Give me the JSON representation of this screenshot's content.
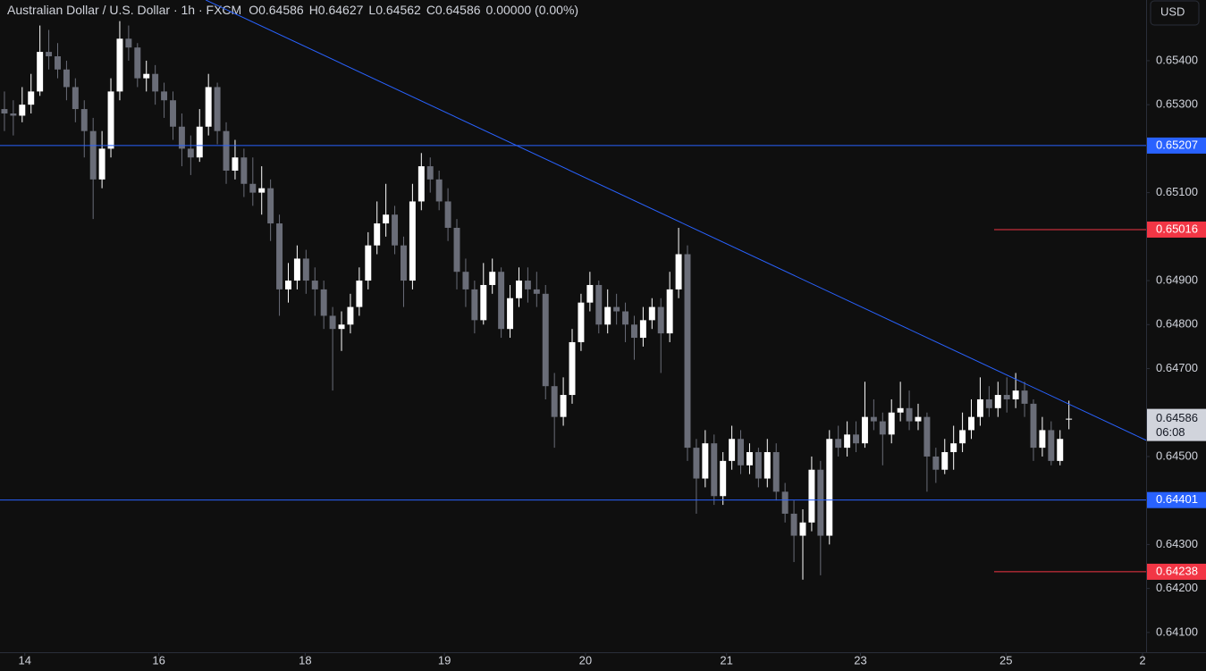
{
  "chart_data": {
    "type": "candlestick",
    "title": "Australian Dollar / U.S. Dollar · 1h · FXCM",
    "legend_values": [
      "O0.64586",
      "H0.64627",
      "L0.64562",
      "C0.64586",
      "0.00000 (0.00%)"
    ],
    "currency": "USD",
    "up_color": "#ffffff",
    "down_color": "#6a6d78",
    "xlim": [
      -0.5,
      128.7
    ],
    "xticks": [
      {
        "value": 2.3,
        "label": "14"
      },
      {
        "value": 17.4,
        "label": "16"
      },
      {
        "value": 33.9,
        "label": "18"
      },
      {
        "value": 49.6,
        "label": "19"
      },
      {
        "value": 65.5,
        "label": "20"
      },
      {
        "value": 81.4,
        "label": "21"
      },
      {
        "value": 96.5,
        "label": "23"
      },
      {
        "value": 112.9,
        "label": "25"
      },
      {
        "value": 128.3,
        "label": "2"
      }
    ],
    "ylim": [
      0.64055,
      0.65538
    ],
    "yticks": [
      {
        "value": 0.654,
        "label": "0.65400"
      },
      {
        "value": 0.653,
        "label": "0.65300"
      },
      {
        "value": 0.651,
        "label": "0.65100"
      },
      {
        "value": 0.649,
        "label": "0.64900"
      },
      {
        "value": 0.648,
        "label": "0.64800"
      },
      {
        "value": 0.647,
        "label": "0.64700"
      },
      {
        "value": 0.645,
        "label": "0.64500"
      },
      {
        "value": 0.643,
        "label": "0.64300"
      },
      {
        "value": 0.642,
        "label": "0.64200"
      },
      {
        "value": 0.641,
        "label": "0.64100"
      }
    ],
    "price_lines": [
      {
        "value": 0.65207,
        "color": "#2962ff",
        "full": true
      },
      {
        "value": 0.65016,
        "color": "#f23645",
        "full": false
      },
      {
        "value": 0.64401,
        "color": "#2962ff",
        "full": true
      },
      {
        "value": 0.64238,
        "color": "#f23645",
        "full": false
      }
    ],
    "current_price": 0.64586,
    "countdown": "06:08",
    "trendline": {
      "color": "#2962ff",
      "x": [
        22.7,
        128.7
      ],
      "y": [
        0.65538,
        0.64537
      ]
    },
    "candles": [
      [
        0.6529,
        0.6533,
        0.6524,
        0.6528
      ],
      [
        0.6528,
        0.6531,
        0.6523,
        0.65275
      ],
      [
        0.65275,
        0.6534,
        0.6526,
        0.653
      ],
      [
        0.653,
        0.6537,
        0.6528,
        0.6533
      ],
      [
        0.6533,
        0.6548,
        0.6532,
        0.6542
      ],
      [
        0.6542,
        0.6547,
        0.6538,
        0.6541
      ],
      [
        0.6541,
        0.6544,
        0.6536,
        0.6538
      ],
      [
        0.6538,
        0.654,
        0.6531,
        0.6534
      ],
      [
        0.6534,
        0.6536,
        0.6526,
        0.6529
      ],
      [
        0.6529,
        0.6531,
        0.6518,
        0.6524
      ],
      [
        0.6524,
        0.6527,
        0.6504,
        0.6513
      ],
      [
        0.6513,
        0.6524,
        0.6511,
        0.652
      ],
      [
        0.652,
        0.6536,
        0.6518,
        0.6533
      ],
      [
        0.6533,
        0.6549,
        0.6531,
        0.6545
      ],
      [
        0.6545,
        0.6548,
        0.654,
        0.6543
      ],
      [
        0.6543,
        0.6544,
        0.6534,
        0.6536
      ],
      [
        0.6536,
        0.654,
        0.6533,
        0.6537
      ],
      [
        0.6537,
        0.6539,
        0.653,
        0.6533
      ],
      [
        0.6533,
        0.6535,
        0.6527,
        0.6531
      ],
      [
        0.6531,
        0.6533,
        0.6522,
        0.6525
      ],
      [
        0.6525,
        0.6528,
        0.6516,
        0.652
      ],
      [
        0.652,
        0.6523,
        0.6514,
        0.6518
      ],
      [
        0.6518,
        0.6529,
        0.6517,
        0.6525
      ],
      [
        0.6525,
        0.6537,
        0.6523,
        0.6534
      ],
      [
        0.6534,
        0.6535,
        0.6521,
        0.6524
      ],
      [
        0.6524,
        0.6526,
        0.6512,
        0.6515
      ],
      [
        0.6515,
        0.6522,
        0.6513,
        0.6518
      ],
      [
        0.6518,
        0.652,
        0.6509,
        0.6512
      ],
      [
        0.6512,
        0.6518,
        0.6507,
        0.651
      ],
      [
        0.651,
        0.6516,
        0.6505,
        0.6511
      ],
      [
        0.6511,
        0.6513,
        0.6499,
        0.6503
      ],
      [
        0.6503,
        0.6505,
        0.6482,
        0.6488
      ],
      [
        0.6488,
        0.6494,
        0.6485,
        0.649
      ],
      [
        0.649,
        0.6498,
        0.6488,
        0.6495
      ],
      [
        0.6495,
        0.6497,
        0.6487,
        0.649
      ],
      [
        0.649,
        0.6493,
        0.6482,
        0.6488
      ],
      [
        0.6488,
        0.649,
        0.6479,
        0.6482
      ],
      [
        0.6482,
        0.6484,
        0.6465,
        0.6479
      ],
      [
        0.6479,
        0.6483,
        0.6474,
        0.648
      ],
      [
        0.648,
        0.6487,
        0.6478,
        0.6484
      ],
      [
        0.6484,
        0.6493,
        0.6482,
        0.649
      ],
      [
        0.649,
        0.6501,
        0.6488,
        0.6498
      ],
      [
        0.6498,
        0.6508,
        0.6496,
        0.6503
      ],
      [
        0.6503,
        0.6512,
        0.65,
        0.6505
      ],
      [
        0.6505,
        0.6507,
        0.6496,
        0.6498
      ],
      [
        0.6498,
        0.65,
        0.6484,
        0.649
      ],
      [
        0.649,
        0.6512,
        0.6488,
        0.6508
      ],
      [
        0.6508,
        0.6519,
        0.6506,
        0.6516
      ],
      [
        0.6516,
        0.6518,
        0.651,
        0.6513
      ],
      [
        0.6513,
        0.6515,
        0.6506,
        0.6508
      ],
      [
        0.6508,
        0.6511,
        0.6499,
        0.6502
      ],
      [
        0.6502,
        0.6504,
        0.6488,
        0.6492
      ],
      [
        0.6492,
        0.6495,
        0.6484,
        0.6488
      ],
      [
        0.6488,
        0.649,
        0.6478,
        0.6481
      ],
      [
        0.6481,
        0.6494,
        0.648,
        0.6489
      ],
      [
        0.6489,
        0.6495,
        0.6487,
        0.6492
      ],
      [
        0.6492,
        0.6493,
        0.6477,
        0.6479
      ],
      [
        0.6479,
        0.6489,
        0.6477,
        0.6486
      ],
      [
        0.6486,
        0.6493,
        0.6484,
        0.649
      ],
      [
        0.649,
        0.6493,
        0.6485,
        0.6488
      ],
      [
        0.6488,
        0.6492,
        0.6484,
        0.6487
      ],
      [
        0.6487,
        0.6489,
        0.6463,
        0.6466
      ],
      [
        0.6466,
        0.6469,
        0.6452,
        0.6459
      ],
      [
        0.6459,
        0.6468,
        0.6457,
        0.6464
      ],
      [
        0.6464,
        0.6479,
        0.6462,
        0.6476
      ],
      [
        0.6476,
        0.6487,
        0.6474,
        0.6485
      ],
      [
        0.6485,
        0.6492,
        0.6483,
        0.6489
      ],
      [
        0.6489,
        0.649,
        0.6478,
        0.648
      ],
      [
        0.648,
        0.6488,
        0.6478,
        0.6484
      ],
      [
        0.6484,
        0.6487,
        0.648,
        0.6483
      ],
      [
        0.6483,
        0.6485,
        0.6476,
        0.648
      ],
      [
        0.648,
        0.6482,
        0.6472,
        0.6477
      ],
      [
        0.6477,
        0.6484,
        0.6475,
        0.6481
      ],
      [
        0.6481,
        0.6486,
        0.6479,
        0.6484
      ],
      [
        0.6484,
        0.6486,
        0.6469,
        0.6478
      ],
      [
        0.6478,
        0.6492,
        0.6476,
        0.6488
      ],
      [
        0.6488,
        0.6502,
        0.6486,
        0.6496
      ],
      [
        0.6496,
        0.6498,
        0.6449,
        0.6452
      ],
      [
        0.6452,
        0.6454,
        0.6437,
        0.6445
      ],
      [
        0.6445,
        0.6456,
        0.6443,
        0.6453
      ],
      [
        0.6453,
        0.6455,
        0.6439,
        0.6441
      ],
      [
        0.6441,
        0.6451,
        0.6439,
        0.6449
      ],
      [
        0.6449,
        0.6457,
        0.6447,
        0.6454
      ],
      [
        0.6454,
        0.6456,
        0.6446,
        0.6448
      ],
      [
        0.6448,
        0.6453,
        0.6446,
        0.6451
      ],
      [
        0.6451,
        0.6452,
        0.6443,
        0.6445
      ],
      [
        0.6445,
        0.6454,
        0.6443,
        0.6451
      ],
      [
        0.6451,
        0.6453,
        0.644,
        0.6442
      ],
      [
        0.6442,
        0.6444,
        0.6435,
        0.6437
      ],
      [
        0.6437,
        0.644,
        0.6426,
        0.6432
      ],
      [
        0.6432,
        0.6438,
        0.6422,
        0.6435
      ],
      [
        0.6435,
        0.645,
        0.6433,
        0.6447
      ],
      [
        0.6447,
        0.6449,
        0.6423,
        0.6432
      ],
      [
        0.6432,
        0.6456,
        0.643,
        0.6454
      ],
      [
        0.6454,
        0.6457,
        0.645,
        0.6452
      ],
      [
        0.6452,
        0.6458,
        0.645,
        0.6455
      ],
      [
        0.6455,
        0.6458,
        0.6451,
        0.6453
      ],
      [
        0.6453,
        0.6467,
        0.6452,
        0.6459
      ],
      [
        0.6459,
        0.6463,
        0.6456,
        0.6458
      ],
      [
        0.6458,
        0.646,
        0.6448,
        0.6455
      ],
      [
        0.6455,
        0.6463,
        0.6453,
        0.646
      ],
      [
        0.646,
        0.6467,
        0.6458,
        0.6461
      ],
      [
        0.6461,
        0.6465,
        0.6456,
        0.6458
      ],
      [
        0.6458,
        0.6462,
        0.6456,
        0.6459
      ],
      [
        0.6459,
        0.646,
        0.6442,
        0.645
      ],
      [
        0.645,
        0.6452,
        0.6444,
        0.6447
      ],
      [
        0.6447,
        0.6454,
        0.6446,
        0.6451
      ],
      [
        0.6451,
        0.6457,
        0.6447,
        0.6453
      ],
      [
        0.6453,
        0.646,
        0.6451,
        0.6456
      ],
      [
        0.6456,
        0.6463,
        0.6454,
        0.6459
      ],
      [
        0.6459,
        0.6468,
        0.6457,
        0.6463
      ],
      [
        0.6463,
        0.6466,
        0.6459,
        0.6461
      ],
      [
        0.6461,
        0.6467,
        0.6459,
        0.6464
      ],
      [
        0.6464,
        0.6468,
        0.646,
        0.6463
      ],
      [
        0.6463,
        0.6469,
        0.6461,
        0.6465
      ],
      [
        0.6465,
        0.6467,
        0.6459,
        0.6462
      ],
      [
        0.6462,
        0.6463,
        0.6449,
        0.6452
      ],
      [
        0.6452,
        0.6459,
        0.645,
        0.6456
      ],
      [
        0.6456,
        0.6458,
        0.6448,
        0.6449
      ],
      [
        0.6449,
        0.6456,
        0.6448,
        0.6454
      ],
      [
        0.64586,
        0.64627,
        0.64562,
        0.64586
      ]
    ]
  }
}
